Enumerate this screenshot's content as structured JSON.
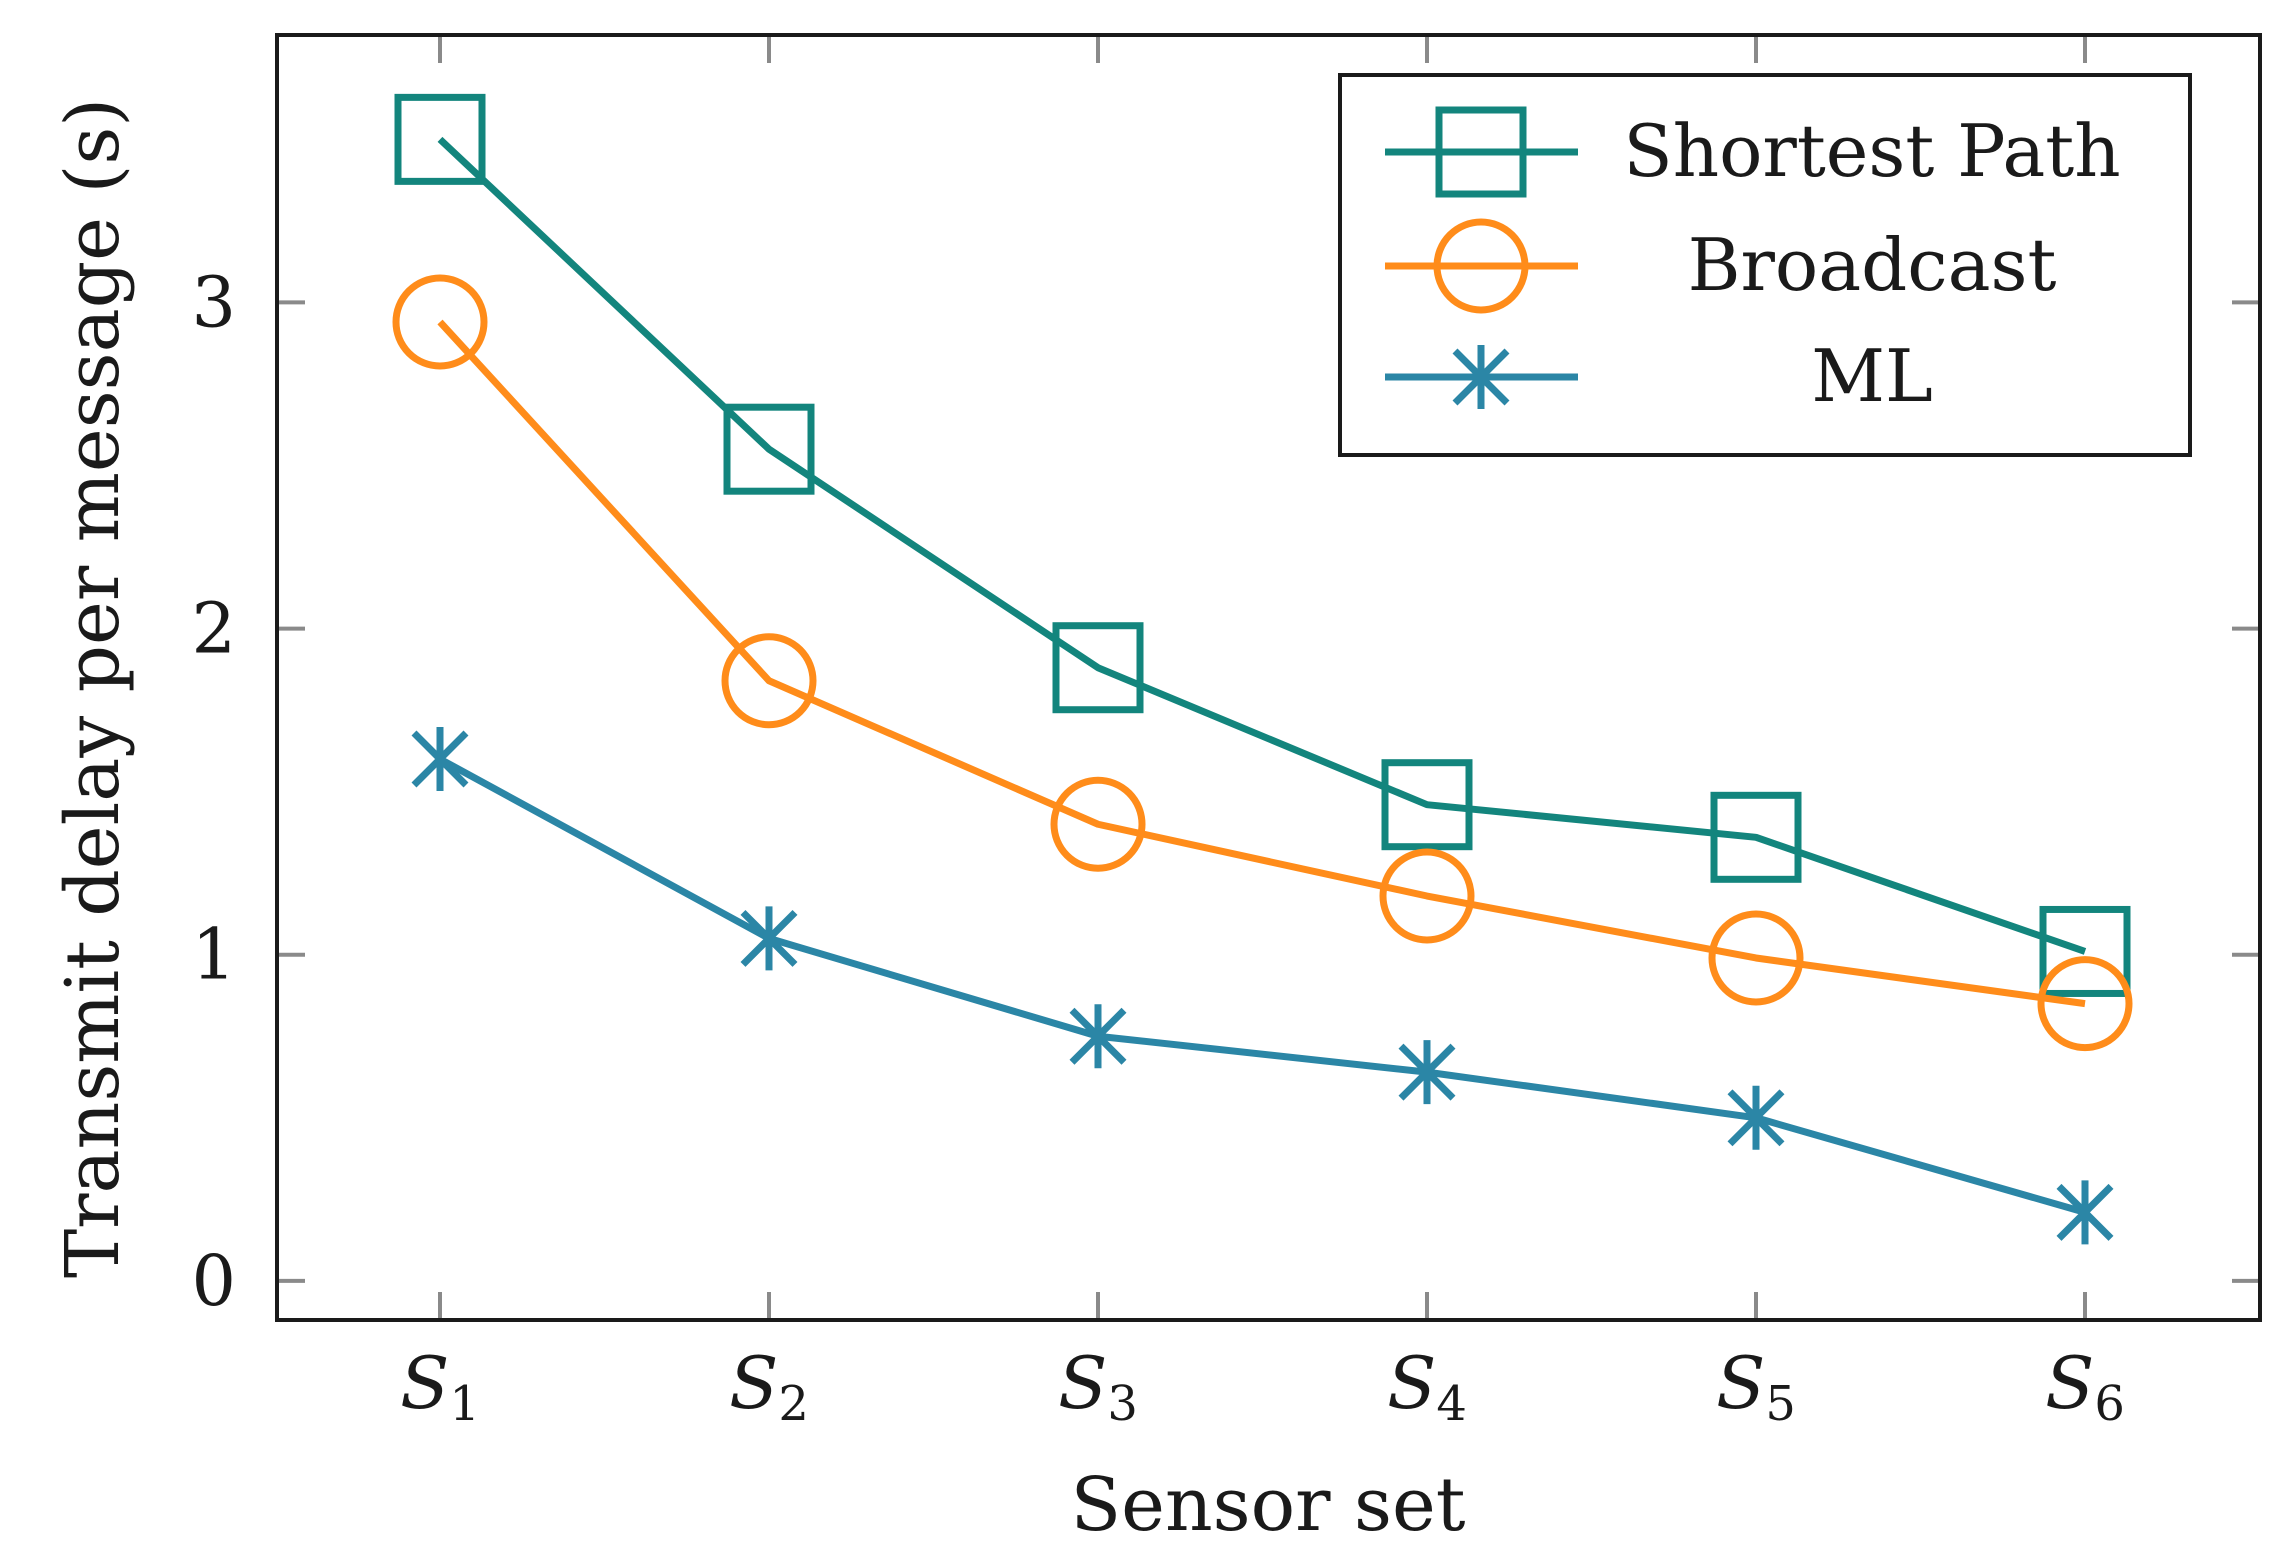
{
  "chart_data": {
    "type": "line",
    "title": "",
    "xlabel": "Sensor set",
    "ylabel": "Transmit delay per message (s)",
    "categories": [
      {
        "main": "S",
        "sub": "1"
      },
      {
        "main": "S",
        "sub": "2"
      },
      {
        "main": "S",
        "sub": "3"
      },
      {
        "main": "S",
        "sub": "4"
      },
      {
        "main": "S",
        "sub": "5"
      },
      {
        "main": "S",
        "sub": "6"
      }
    ],
    "ylim": [
      -0.12,
      3.82
    ],
    "yticks": [
      0,
      1,
      2,
      3
    ],
    "grid": false,
    "legend_position": "top-right",
    "series": [
      {
        "name": "Shortest Path",
        "marker": "square",
        "color": "#13857d",
        "values": [
          3.5,
          2.55,
          1.88,
          1.46,
          1.36,
          1.01
        ]
      },
      {
        "name": "Broadcast",
        "marker": "circle",
        "color": "#ff8c1a",
        "values": [
          2.94,
          1.84,
          1.4,
          1.18,
          0.99,
          0.85
        ]
      },
      {
        "name": "ML",
        "marker": "cross",
        "color": "#2b86a6",
        "values": [
          1.6,
          1.05,
          0.75,
          0.64,
          0.5,
          0.21
        ]
      }
    ]
  }
}
